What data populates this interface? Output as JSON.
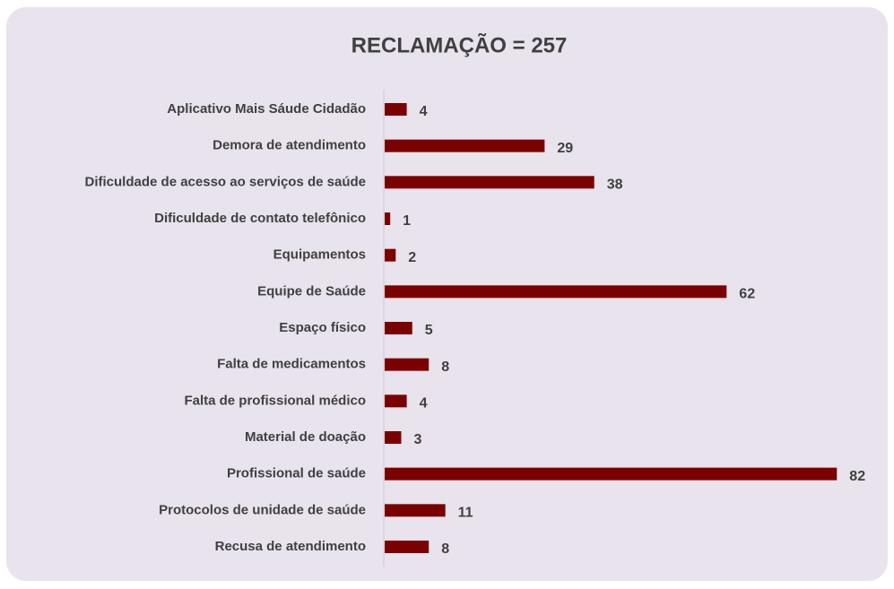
{
  "chart_data": {
    "type": "bar",
    "orientation": "horizontal",
    "title": "RECLAMAÇÃO = 257",
    "categories": [
      "Aplicativo Mais Sáude Cidadão",
      "Demora de atendimento",
      "Dificuldade de acesso ao serviços de saúde",
      "Dificuldade de contato telefônico",
      "Equipamentos",
      "Equipe de Saúde",
      "Espaço físico",
      "Falta de medicamentos",
      "Falta de profissional médico",
      "Material de doação",
      "Profissional de saúde",
      "Protocolos de unidade de saúde",
      "Recusa de atendimento"
    ],
    "values": [
      4,
      29,
      38,
      1,
      2,
      62,
      5,
      8,
      4,
      3,
      82,
      11,
      8
    ],
    "color": "#7b0000"
  }
}
